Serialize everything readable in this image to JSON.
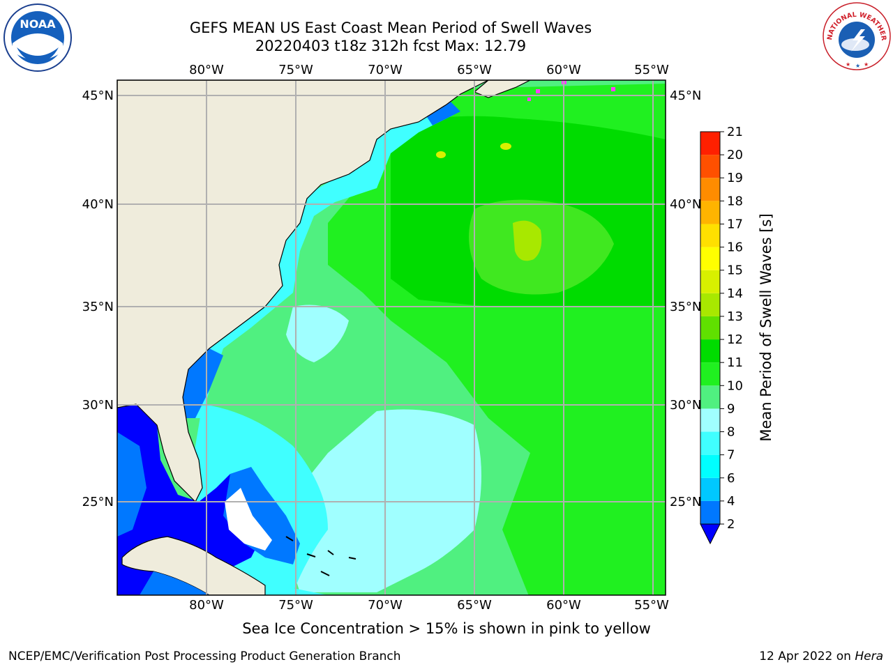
{
  "title": {
    "line1": "GEFS MEAN US East Coast Mean Period of Swell Waves",
    "line2": "20220403 t18z 312h fcst   Max: 12.79"
  },
  "logos": {
    "noaa": "NOAA",
    "nws": "NATIONAL WEATHER SERVICE",
    "noaa_ring": "NATIONAL OCEANIC AND ATMOSPHERIC ADMINISTRATION · U.S. DEPARTMENT OF COMMERCE"
  },
  "map": {
    "lon_labels": [
      "80°W",
      "75°W",
      "70°W",
      "65°W",
      "60°W",
      "55°W"
    ],
    "lat_labels": [
      "45°N",
      "40°N",
      "35°N",
      "30°N",
      "25°N"
    ],
    "land_color": "#efecdc",
    "grid_color": "#b0b0b0"
  },
  "colorbar": {
    "label": "Mean Period of Swell Waves [s]",
    "ticks": [
      "2",
      "4",
      "6",
      "7",
      "8",
      "9",
      "10",
      "11",
      "12",
      "13",
      "14",
      "15",
      "16",
      "17",
      "18",
      "19",
      "20",
      "21"
    ],
    "colors": [
      "#0000ff",
      "#0078ff",
      "#00c8ff",
      "#00ffff",
      "#40ffff",
      "#a0ffff",
      "#50f080",
      "#20f020",
      "#00dc00",
      "#60e000",
      "#a8e800",
      "#d8f000",
      "#ffff00",
      "#ffe000",
      "#ffb400",
      "#ff8c00",
      "#ff5000",
      "#ff2000",
      "#ff0000"
    ],
    "extend_min_color": "#0000ff"
  },
  "note": "Sea Ice Concentration > 15% is shown in pink to yellow",
  "footer": {
    "left": "NCEP/EMC/Verification Post Processing Product Generation Branch",
    "right_date": "12 Apr 2022 on ",
    "right_machine": "Hera"
  }
}
